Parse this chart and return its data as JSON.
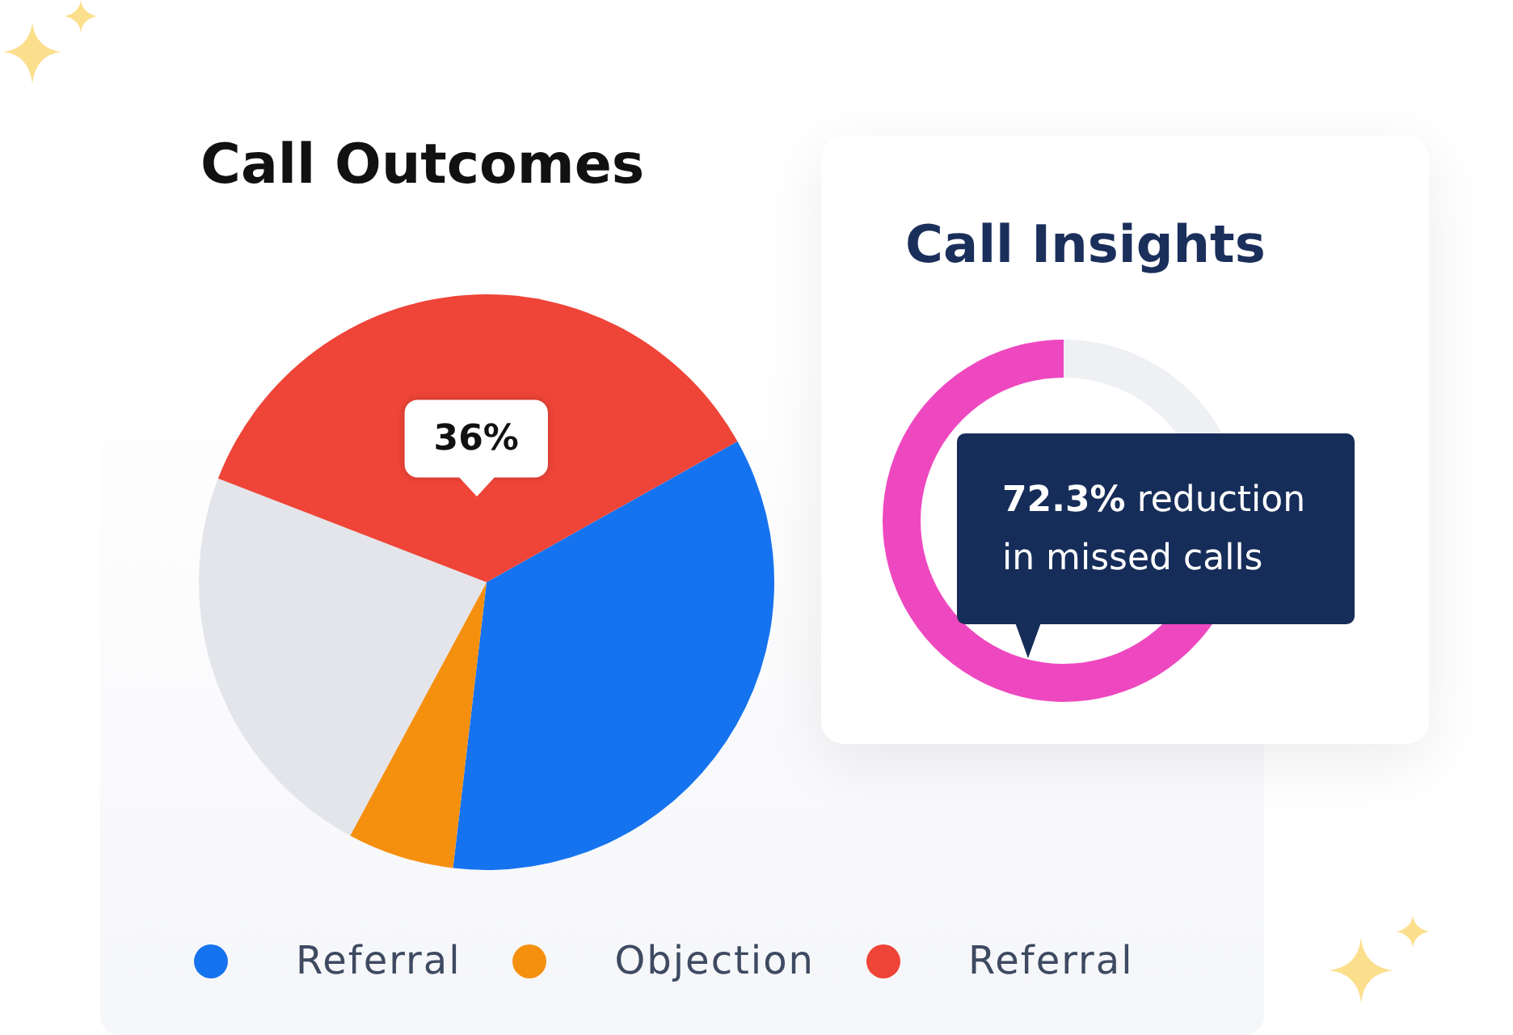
{
  "chart_data": [
    {
      "type": "pie",
      "title": "Call Outcomes",
      "categories": [
        "Referral",
        "Objection",
        null,
        "Referral"
      ],
      "values": [
        35,
        6,
        23,
        36
      ],
      "colors": [
        "#1673ef",
        "#f5900f",
        "#e3e5ea",
        "#ef4438"
      ],
      "value_labels": [
        null,
        null,
        null,
        "36%"
      ],
      "legend": "bottom"
    },
    {
      "type": "donut",
      "title": "Call Insights",
      "categories": [
        null,
        null
      ],
      "values": [
        27.7,
        72.3
      ],
      "colors": [
        "#eef0f4",
        "#ee48c0"
      ],
      "annotations": [
        "72.3% reduction in missed calls"
      ]
    }
  ]
}
